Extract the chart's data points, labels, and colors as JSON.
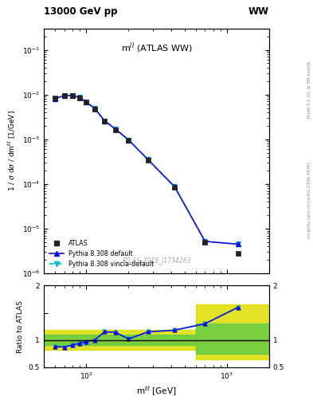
{
  "title_left": "13000 GeV pp",
  "title_right": "WW",
  "panel_title": "m$^{ll}$ (ATLAS WW)",
  "watermark": "ATLAS_2019_I1734263",
  "right_label_top": "Rivet 3.1.10, ≥ 3M events",
  "right_label_bot": "mcplots.cern.ch [arXiv:1306.3436]",
  "xlabel": "m$^{\\ell\\ell}_{\\ell\\ell}$ [GeV]",
  "ylabel_main": "1 / σ dσ / dm$^{\\ell\\ell}$ [1/GeV]",
  "ylabel_ratio": "Ratio to ATLAS",
  "xlim": [
    50,
    2000
  ],
  "ylim_main_lo": 1e-06,
  "ylim_main_hi": 0.3,
  "ylim_ratio_lo": 0.5,
  "ylim_ratio_hi": 2.0,
  "atlas_x": [
    60,
    70,
    80,
    90,
    100,
    115,
    135,
    162,
    200,
    275,
    425,
    700,
    1200
  ],
  "atlas_y": [
    0.0085,
    0.0096,
    0.0096,
    0.0085,
    0.0068,
    0.0048,
    0.0025,
    0.00165,
    0.00095,
    0.000345,
    8.5e-05,
    5e-06,
    2.8e-06
  ],
  "pythia_x": [
    60,
    70,
    80,
    90,
    100,
    115,
    135,
    162,
    200,
    275,
    425,
    700,
    1200
  ],
  "pythia_y": [
    0.0082,
    0.0095,
    0.0096,
    0.0086,
    0.0068,
    0.0049,
    0.0026,
    0.00168,
    0.00097,
    0.00035,
    8.7e-05,
    5.2e-06,
    4.5e-06
  ],
  "vincia_x": [
    60,
    70,
    80,
    90,
    100,
    115,
    135,
    162,
    200,
    275,
    425,
    700,
    1200
  ],
  "vincia_y": [
    0.0082,
    0.0095,
    0.0096,
    0.0086,
    0.0068,
    0.0049,
    0.0026,
    0.00168,
    0.00097,
    0.00035,
    8.7e-05,
    5.2e-06,
    4.5e-06
  ],
  "ratio_x": [
    60,
    70,
    80,
    90,
    100,
    115,
    135,
    162,
    200,
    275,
    425,
    700,
    1200
  ],
  "ratio_pythia_y": [
    0.88,
    0.87,
    0.91,
    0.94,
    0.97,
    1.0,
    1.15,
    1.14,
    1.02,
    1.15,
    1.18,
    1.3,
    1.6
  ],
  "ratio_vincia_y": [
    0.88,
    0.87,
    0.91,
    0.94,
    0.97,
    1.0,
    1.15,
    1.14,
    1.02,
    1.15,
    1.18,
    1.3,
    1.6
  ],
  "green_edges": [
    50,
    600,
    600,
    2000
  ],
  "green_lo": [
    0.9,
    0.9,
    0.75,
    0.75
  ],
  "green_hi": [
    1.1,
    1.1,
    1.3,
    1.3
  ],
  "yellow_edges": [
    50,
    600,
    600,
    2000
  ],
  "yellow_lo": [
    0.82,
    0.82,
    0.65,
    0.65
  ],
  "yellow_hi": [
    1.18,
    1.18,
    1.65,
    1.65
  ],
  "color_atlas": "#222222",
  "color_pythia": "#1111dd",
  "color_vincia": "#00bbcc",
  "color_green": "#66cc44",
  "color_yellow": "#dddd00",
  "bg_color": "#ffffff"
}
